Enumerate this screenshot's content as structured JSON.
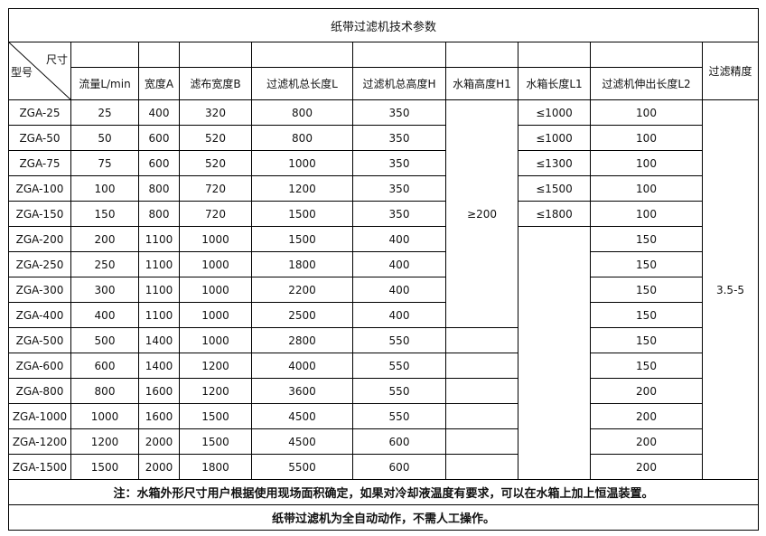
{
  "title": "纸带过滤机技术参数",
  "corner": {
    "top": "尺寸",
    "bottom": "型号"
  },
  "headers": [
    "流量L/min",
    "宽度A",
    "滤布宽度B",
    "过滤机总长度L",
    "过滤机总高度H",
    "水箱高度H1",
    "水箱长度L1",
    "过滤机伸出长度L2",
    "过滤精度"
  ],
  "rows": [
    [
      "ZGA-25",
      "25",
      "400",
      "320",
      "800",
      "350",
      "≤1000",
      "100"
    ],
    [
      "ZGA-50",
      "50",
      "600",
      "520",
      "800",
      "350",
      "≤1000",
      "100"
    ],
    [
      "ZGA-75",
      "75",
      "600",
      "520",
      "1000",
      "350",
      "≤1300",
      "100"
    ],
    [
      "ZGA-100",
      "100",
      "800",
      "720",
      "1200",
      "350",
      "≤1500",
      "100"
    ],
    [
      "ZGA-150",
      "150",
      "800",
      "720",
      "1500",
      "350",
      "≤1800",
      "100"
    ],
    [
      "ZGA-200",
      "200",
      "1100",
      "1000",
      "1500",
      "400",
      "",
      "150"
    ],
    [
      "ZGA-250",
      "250",
      "1100",
      "1000",
      "1800",
      "400",
      "",
      "150"
    ],
    [
      "ZGA-300",
      "300",
      "1100",
      "1000",
      "2200",
      "400",
      "",
      "150"
    ],
    [
      "ZGA-400",
      "400",
      "1100",
      "1000",
      "2500",
      "400",
      "",
      "150"
    ],
    [
      "ZGA-500",
      "500",
      "1400",
      "1000",
      "2800",
      "550",
      "",
      "150"
    ],
    [
      "ZGA-600",
      "600",
      "1400",
      "1200",
      "4000",
      "550",
      "",
      "150"
    ],
    [
      "ZGA-800",
      "800",
      "1600",
      "1200",
      "3600",
      "550",
      "",
      "200"
    ],
    [
      "ZGA-1000",
      "1000",
      "1600",
      "1500",
      "4500",
      "550",
      "",
      "200"
    ],
    [
      "ZGA-1200",
      "1200",
      "2000",
      "1500",
      "4500",
      "600",
      "",
      "200"
    ],
    [
      "ZGA-1500",
      "1500",
      "2000",
      "1800",
      "5500",
      "600",
      "",
      "200"
    ]
  ],
  "h1_merged": "≥200",
  "precision": "3.5-5",
  "note1": "注：水箱外形尺寸用户根据使用现场面积确定，如果对冷却液温度有要求，可以在水箱上加上恒温装置。",
  "note2": "纸带过滤机为全自动动作，不需人工操作。"
}
